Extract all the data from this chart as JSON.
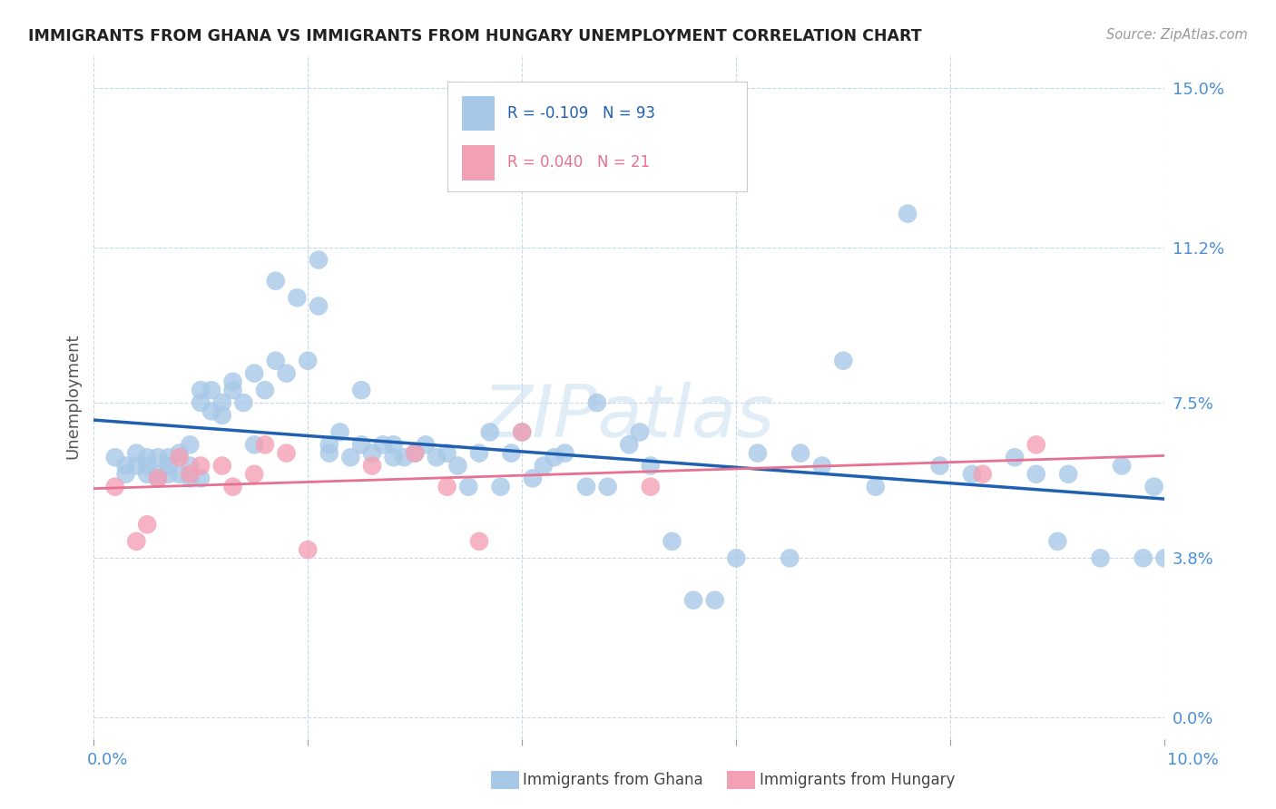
{
  "title": "IMMIGRANTS FROM GHANA VS IMMIGRANTS FROM HUNGARY UNEMPLOYMENT CORRELATION CHART",
  "source": "Source: ZipAtlas.com",
  "ylabel": "Unemployment",
  "xmin": 0.0,
  "xmax": 0.1,
  "ymin": -0.005,
  "ymax": 0.158,
  "ghana_color": "#a8c8e8",
  "hungary_color": "#f4a0b4",
  "ghana_line_color": "#2060b0",
  "hungary_line_color": "#e87090",
  "ghana_R": -0.109,
  "ghana_N": 93,
  "hungary_R": 0.04,
  "hungary_N": 21,
  "watermark": "ZIPatlas",
  "ytick_vals": [
    0.0,
    0.038,
    0.075,
    0.112,
    0.15
  ],
  "ytick_labels": [
    "0.0%",
    "3.8%",
    "7.5%",
    "11.2%",
    "15.0%"
  ],
  "xtick_vals": [
    0.0,
    0.02,
    0.04,
    0.06,
    0.08,
    0.1
  ],
  "ghana_x": [
    0.002,
    0.003,
    0.003,
    0.004,
    0.004,
    0.005,
    0.005,
    0.005,
    0.006,
    0.006,
    0.006,
    0.007,
    0.007,
    0.007,
    0.008,
    0.008,
    0.009,
    0.009,
    0.009,
    0.01,
    0.01,
    0.01,
    0.011,
    0.011,
    0.012,
    0.012,
    0.013,
    0.013,
    0.014,
    0.015,
    0.015,
    0.016,
    0.017,
    0.017,
    0.018,
    0.019,
    0.02,
    0.021,
    0.021,
    0.022,
    0.022,
    0.023,
    0.024,
    0.025,
    0.025,
    0.026,
    0.027,
    0.028,
    0.028,
    0.029,
    0.03,
    0.031,
    0.032,
    0.033,
    0.034,
    0.035,
    0.036,
    0.037,
    0.038,
    0.039,
    0.04,
    0.041,
    0.042,
    0.043,
    0.044,
    0.046,
    0.047,
    0.048,
    0.05,
    0.051,
    0.052,
    0.054,
    0.056,
    0.058,
    0.06,
    0.062,
    0.065,
    0.066,
    0.068,
    0.07,
    0.073,
    0.076,
    0.079,
    0.082,
    0.086,
    0.088,
    0.09,
    0.091,
    0.094,
    0.096,
    0.098,
    0.099,
    0.1
  ],
  "ghana_y": [
    0.062,
    0.06,
    0.058,
    0.06,
    0.063,
    0.058,
    0.062,
    0.06,
    0.058,
    0.062,
    0.057,
    0.06,
    0.062,
    0.058,
    0.058,
    0.063,
    0.065,
    0.06,
    0.057,
    0.075,
    0.078,
    0.057,
    0.073,
    0.078,
    0.075,
    0.072,
    0.078,
    0.08,
    0.075,
    0.082,
    0.065,
    0.078,
    0.104,
    0.085,
    0.082,
    0.1,
    0.085,
    0.098,
    0.109,
    0.063,
    0.065,
    0.068,
    0.062,
    0.078,
    0.065,
    0.063,
    0.065,
    0.062,
    0.065,
    0.062,
    0.063,
    0.065,
    0.062,
    0.063,
    0.06,
    0.055,
    0.063,
    0.068,
    0.055,
    0.063,
    0.068,
    0.057,
    0.06,
    0.062,
    0.063,
    0.055,
    0.075,
    0.055,
    0.065,
    0.068,
    0.06,
    0.042,
    0.028,
    0.028,
    0.038,
    0.063,
    0.038,
    0.063,
    0.06,
    0.085,
    0.055,
    0.12,
    0.06,
    0.058,
    0.062,
    0.058,
    0.042,
    0.058,
    0.038,
    0.06,
    0.038,
    0.055,
    0.038
  ],
  "hungary_x": [
    0.002,
    0.004,
    0.005,
    0.006,
    0.008,
    0.009,
    0.01,
    0.012,
    0.013,
    0.015,
    0.016,
    0.018,
    0.02,
    0.026,
    0.03,
    0.033,
    0.036,
    0.04,
    0.052,
    0.083,
    0.088
  ],
  "hungary_y": [
    0.055,
    0.042,
    0.046,
    0.057,
    0.062,
    0.058,
    0.06,
    0.06,
    0.055,
    0.058,
    0.065,
    0.063,
    0.04,
    0.06,
    0.063,
    0.055,
    0.042,
    0.068,
    0.055,
    0.058,
    0.065
  ],
  "legend_ghana_text": "R = -0.109   N = 93",
  "legend_hungary_text": "R = 0.040   N = 21",
  "legend_label_ghana": "Immigrants from Ghana",
  "legend_label_hungary": "Immigrants from Hungary"
}
